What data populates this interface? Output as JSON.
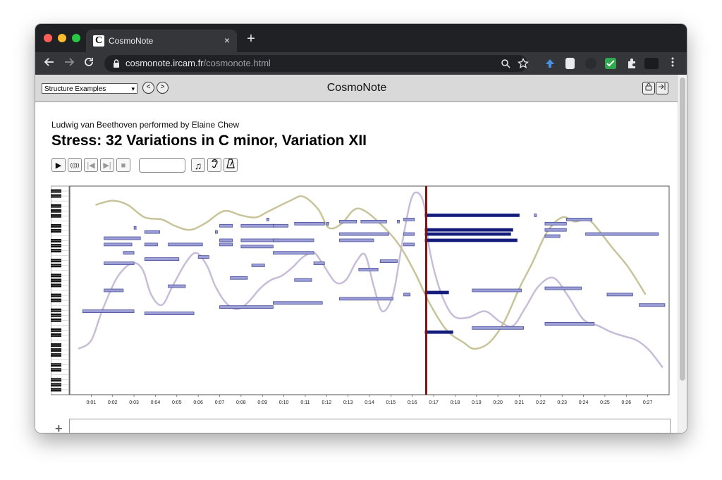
{
  "browser": {
    "tab_title": "CosmoNote",
    "tab_favicon": "C",
    "tab_close": "×",
    "new_tab": "+",
    "url_host": "cosmonote.ircam.fr",
    "url_path": "/cosmonote.html"
  },
  "header": {
    "select_value": "Structure Examples",
    "app_title": "CosmoNote"
  },
  "piece": {
    "subtitle": "Ludwig van Beethoven performed by Elaine Chew",
    "title": "Stress: 32 Variations in C minor, Variation XII"
  },
  "player": {
    "play": "▶",
    "listen": "((|))",
    "prev": "|◀",
    "next": "▶|",
    "stop": "■",
    "time_value": "",
    "note_icon": "♫",
    "ear_icon": "ear-icon",
    "metronome_icon": "metronome-icon"
  },
  "colors": {
    "note_fill": "#9b9fd6",
    "note_active": "#131c7a",
    "stress_curve": "#c8c49a",
    "loudness_curve": "#c8bdd9",
    "playhead": "#7a1212"
  },
  "chart_data": {
    "type": "scatter",
    "x_ticks": [
      "0:01",
      "0:02",
      "0:03",
      "0:04",
      "0:05",
      "0:06",
      "0:07",
      "0:08",
      "0:09",
      "0:10",
      "0:11",
      "0:12",
      "0:13",
      "0:14",
      "0:15",
      "0:16",
      "0:17",
      "0:18",
      "0:19",
      "0:20",
      "0:21",
      "0:22",
      "0:23",
      "0:24",
      "0:25",
      "0:26",
      "0:27"
    ],
    "xlim": [
      0,
      28
    ],
    "playhead_time": 16.65,
    "notes": [
      {
        "t": 0.6,
        "d": 2.4,
        "y": 40
      },
      {
        "t": 1.6,
        "d": 0.9,
        "y": 50
      },
      {
        "t": 1.6,
        "d": 1.4,
        "y": 63
      },
      {
        "t": 1.6,
        "d": 1.3,
        "y": 72
      },
      {
        "t": 1.6,
        "d": 1.7,
        "y": 75
      },
      {
        "t": 2.5,
        "d": 0.5,
        "y": 68
      },
      {
        "t": 3.0,
        "d": 0.1,
        "y": 80
      },
      {
        "t": 3.5,
        "d": 0.7,
        "y": 78
      },
      {
        "t": 3.5,
        "d": 0.6,
        "y": 72
      },
      {
        "t": 3.5,
        "d": 2.3,
        "y": 39
      },
      {
        "t": 3.5,
        "d": 1.6,
        "y": 65
      },
      {
        "t": 4.6,
        "d": 0.8,
        "y": 52
      },
      {
        "t": 4.6,
        "d": 1.6,
        "y": 72
      },
      {
        "t": 6.0,
        "d": 0.5,
        "y": 66
      },
      {
        "t": 6.8,
        "d": 0.1,
        "y": 78
      },
      {
        "t": 7.0,
        "d": 0.6,
        "y": 81
      },
      {
        "t": 7.0,
        "d": 0.6,
        "y": 74
      },
      {
        "t": 7.0,
        "d": 0.6,
        "y": 72
      },
      {
        "t": 7.0,
        "d": 2.5,
        "y": 42
      },
      {
        "t": 7.5,
        "d": 0.8,
        "y": 56
      },
      {
        "t": 8.0,
        "d": 1.6,
        "y": 81
      },
      {
        "t": 8.0,
        "d": 1.8,
        "y": 74
      },
      {
        "t": 8.0,
        "d": 1.5,
        "y": 71
      },
      {
        "t": 8.5,
        "d": 0.6,
        "y": 62
      },
      {
        "t": 9.2,
        "d": 0.1,
        "y": 84
      },
      {
        "t": 9.5,
        "d": 0.7,
        "y": 81
      },
      {
        "t": 9.5,
        "d": 1.9,
        "y": 74
      },
      {
        "t": 9.5,
        "d": 2.3,
        "y": 44
      },
      {
        "t": 9.5,
        "d": 1.9,
        "y": 68
      },
      {
        "t": 10.5,
        "d": 1.4,
        "y": 82
      },
      {
        "t": 10.5,
        "d": 0.8,
        "y": 55
      },
      {
        "t": 11.4,
        "d": 0.5,
        "y": 63
      },
      {
        "t": 12.0,
        "d": 0.1,
        "y": 82
      },
      {
        "t": 12.6,
        "d": 0.8,
        "y": 83
      },
      {
        "t": 12.6,
        "d": 1.6,
        "y": 74
      },
      {
        "t": 12.6,
        "d": 2.3,
        "y": 77
      },
      {
        "t": 12.6,
        "d": 2.5,
        "y": 46
      },
      {
        "t": 13.6,
        "d": 1.2,
        "y": 83
      },
      {
        "t": 13.5,
        "d": 0.9,
        "y": 60
      },
      {
        "t": 14.5,
        "d": 0.8,
        "y": 64
      },
      {
        "t": 15.3,
        "d": 0.1,
        "y": 83
      },
      {
        "t": 15.6,
        "d": 0.5,
        "y": 84
      },
      {
        "t": 15.6,
        "d": 0.5,
        "y": 77
      },
      {
        "t": 15.6,
        "d": 0.5,
        "y": 72
      },
      {
        "t": 15.6,
        "d": 0.3,
        "y": 48
      },
      {
        "t": 16.6,
        "d": 4.4,
        "y": 86,
        "active": true
      },
      {
        "t": 16.6,
        "d": 4.1,
        "y": 79,
        "active": true
      },
      {
        "t": 16.6,
        "d": 4.0,
        "y": 77,
        "active": true
      },
      {
        "t": 16.6,
        "d": 4.3,
        "y": 74,
        "active": true
      },
      {
        "t": 16.6,
        "d": 1.1,
        "y": 49,
        "active": true
      },
      {
        "t": 16.6,
        "d": 1.3,
        "y": 30,
        "active": true
      },
      {
        "t": 18.8,
        "d": 2.3,
        "y": 50
      },
      {
        "t": 18.8,
        "d": 2.4,
        "y": 32
      },
      {
        "t": 21.7,
        "d": 0.1,
        "y": 86
      },
      {
        "t": 22.2,
        "d": 1.0,
        "y": 82
      },
      {
        "t": 22.2,
        "d": 1.0,
        "y": 79
      },
      {
        "t": 22.2,
        "d": 0.7,
        "y": 76
      },
      {
        "t": 22.2,
        "d": 1.7,
        "y": 51
      },
      {
        "t": 22.2,
        "d": 2.3,
        "y": 34
      },
      {
        "t": 23.2,
        "d": 1.2,
        "y": 84
      },
      {
        "t": 24.1,
        "d": 3.4,
        "y": 77
      },
      {
        "t": 25.1,
        "d": 1.2,
        "y": 48
      },
      {
        "t": 26.6,
        "d": 1.2,
        "y": 43
      }
    ],
    "stress_curve": [
      [
        1.2,
        91
      ],
      [
        2,
        93
      ],
      [
        2.7,
        91
      ],
      [
        3.5,
        85
      ],
      [
        4.3,
        84
      ],
      [
        4.9,
        81
      ],
      [
        5.6,
        79
      ],
      [
        6.3,
        82
      ],
      [
        7.2,
        88
      ],
      [
        8.0,
        86
      ],
      [
        8.7,
        85
      ],
      [
        9.3,
        88
      ],
      [
        10.3,
        93
      ],
      [
        10.9,
        95
      ],
      [
        11.6,
        89
      ],
      [
        12.1,
        80
      ],
      [
        12.7,
        82
      ],
      [
        13.2,
        88
      ],
      [
        13.6,
        89
      ],
      [
        14.3,
        84
      ],
      [
        15.3,
        73
      ],
      [
        16.1,
        59
      ],
      [
        16.8,
        44
      ],
      [
        17.6,
        31
      ],
      [
        18.4,
        25
      ],
      [
        18.9,
        22
      ],
      [
        19.6,
        25
      ],
      [
        20.3,
        35
      ],
      [
        21.0,
        51
      ],
      [
        21.6,
        63
      ],
      [
        22.3,
        78
      ],
      [
        23.0,
        85
      ],
      [
        23.6,
        83
      ],
      [
        24.2,
        84
      ],
      [
        24.7,
        79
      ],
      [
        25.3,
        71
      ],
      [
        26.1,
        61
      ],
      [
        26.9,
        48
      ]
    ],
    "loudness_curve": [
      [
        0.4,
        22
      ],
      [
        1.0,
        26
      ],
      [
        1.5,
        40
      ],
      [
        2.2,
        56
      ],
      [
        2.9,
        63
      ],
      [
        3.4,
        60
      ],
      [
        3.8,
        48
      ],
      [
        4.3,
        43
      ],
      [
        4.8,
        52
      ],
      [
        5.4,
        63
      ],
      [
        5.9,
        68
      ],
      [
        6.4,
        62
      ],
      [
        6.8,
        52
      ],
      [
        7.3,
        44
      ],
      [
        7.8,
        41
      ],
      [
        8.3,
        44
      ],
      [
        8.9,
        51
      ],
      [
        9.4,
        55
      ],
      [
        9.9,
        57
      ],
      [
        10.4,
        61
      ],
      [
        10.9,
        66
      ],
      [
        11.4,
        68
      ],
      [
        11.8,
        63
      ],
      [
        12.4,
        54
      ],
      [
        12.9,
        55
      ],
      [
        13.4,
        64
      ],
      [
        13.8,
        67
      ],
      [
        14.2,
        52
      ],
      [
        14.6,
        40
      ],
      [
        15.1,
        48
      ],
      [
        15.5,
        71
      ],
      [
        15.9,
        92
      ],
      [
        16.2,
        97
      ],
      [
        16.55,
        91
      ],
      [
        16.8,
        70
      ],
      [
        17.3,
        50
      ],
      [
        17.9,
        38
      ],
      [
        18.6,
        37
      ],
      [
        19.4,
        40
      ],
      [
        20.1,
        35
      ],
      [
        20.7,
        33
      ],
      [
        21.3,
        42
      ],
      [
        21.9,
        52
      ],
      [
        22.6,
        56
      ],
      [
        23.3,
        47
      ],
      [
        24.0,
        36
      ],
      [
        24.7,
        33
      ],
      [
        25.3,
        30
      ],
      [
        25.9,
        28
      ],
      [
        26.5,
        26
      ],
      [
        27.1,
        21
      ],
      [
        27.7,
        13
      ]
    ]
  }
}
